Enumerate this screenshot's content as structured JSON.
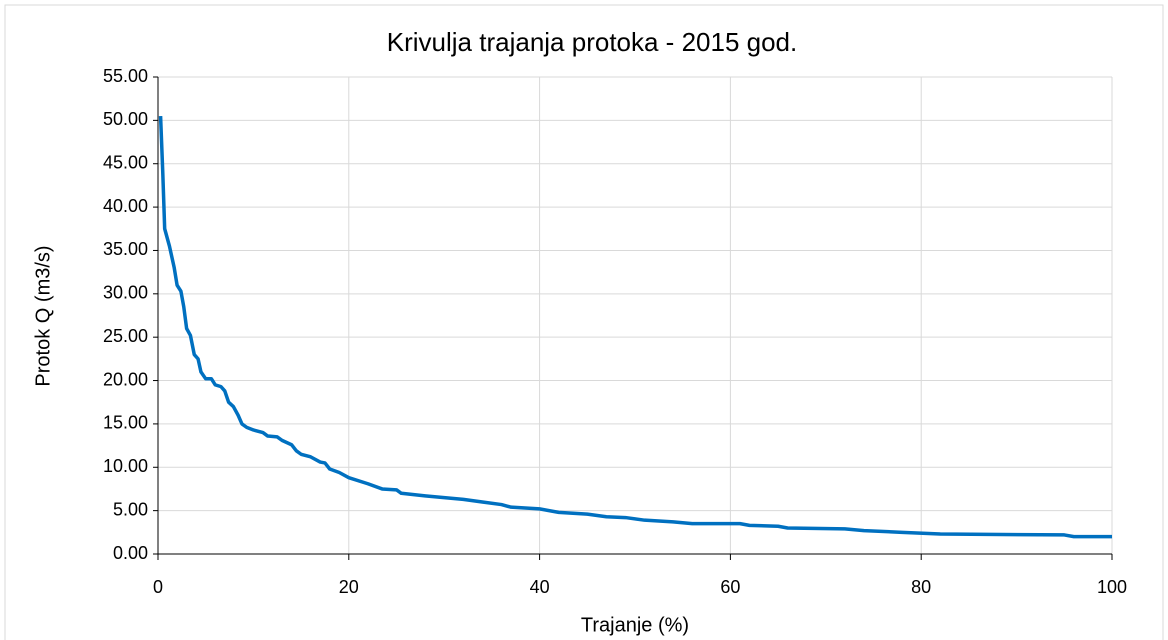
{
  "chart_data": {
    "type": "line",
    "title": "Krivulja trajanja protoka - 2015 god.",
    "x_label": "Trajanje (%)",
    "y_label": "Protok Q (m3/s)",
    "color": "#0070c0",
    "grid": true,
    "xlim": [
      0,
      100
    ],
    "xticks": [
      0,
      20,
      40,
      60,
      80,
      100
    ],
    "ylim": [
      0,
      55
    ],
    "yticks": [
      {
        "value": 0,
        "label": "0.00"
      },
      {
        "value": 5,
        "label": "5.00"
      },
      {
        "value": 10,
        "label": "10.00"
      },
      {
        "value": 15,
        "label": "15.00"
      },
      {
        "value": 20,
        "label": "20.00"
      },
      {
        "value": 25,
        "label": "25.00"
      },
      {
        "value": 30,
        "label": "30.00"
      },
      {
        "value": 35,
        "label": "35.00"
      },
      {
        "value": 40,
        "label": "40.00"
      },
      {
        "value": 45,
        "label": "45.00"
      },
      {
        "value": 50,
        "label": "50.00"
      },
      {
        "value": 55,
        "label": "55.00"
      }
    ],
    "x": [
      0.27,
      0.5,
      0.7,
      1.2,
      1.7,
      2.0,
      2.4,
      2.7,
      3.0,
      3.4,
      3.8,
      4.2,
      4.5,
      5.0,
      5.6,
      6.0,
      6.6,
      7.0,
      7.4,
      7.9,
      8.4,
      8.8,
      9.3,
      10,
      11,
      11.5,
      12.5,
      13,
      14,
      14.5,
      15,
      16,
      17,
      17.5,
      18,
      19,
      20,
      22,
      23.5,
      25,
      25.5,
      28,
      32,
      34,
      36,
      37,
      40,
      42,
      45,
      47,
      49,
      51,
      54,
      56,
      61,
      62,
      65,
      66,
      72,
      74,
      78,
      82,
      95,
      96,
      100
    ],
    "values": [
      50.5,
      44,
      37.5,
      35.5,
      33,
      31,
      30.3,
      28.5,
      26,
      25.2,
      23,
      22.5,
      21,
      20.2,
      20.2,
      19.5,
      19.3,
      18.8,
      17.5,
      17,
      16,
      15,
      14.6,
      14.3,
      14.0,
      13.6,
      13.5,
      13.1,
      12.6,
      11.9,
      11.5,
      11.2,
      10.6,
      10.5,
      9.8,
      9.4,
      8.8,
      8.1,
      7.5,
      7.4,
      7.0,
      6.7,
      6.3,
      6.0,
      5.7,
      5.4,
      5.2,
      4.8,
      4.6,
      4.3,
      4.2,
      3.9,
      3.7,
      3.5,
      3.5,
      3.3,
      3.2,
      3.0,
      2.9,
      2.7,
      2.5,
      2.3,
      2.2,
      2.0,
      2.0
    ]
  }
}
